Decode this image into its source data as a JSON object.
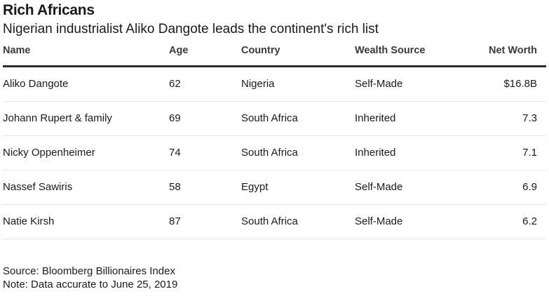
{
  "chart_data": {
    "type": "table",
    "title": "Rich Africans",
    "subtitle": "Nigerian industrialist Aliko Dangote leads the continent's rich list",
    "columns": [
      "Name",
      "Age",
      "Country",
      "Wealth Source",
      "Net Worth"
    ],
    "rows": [
      {
        "name": "Aliko Dangote",
        "age": "62",
        "country": "Nigeria",
        "source": "Self-Made",
        "worth": "$16.8B"
      },
      {
        "name": "Johann Rupert & family",
        "age": "69",
        "country": "South Africa",
        "source": "Inherited",
        "worth": "7.3"
      },
      {
        "name": "Nicky Oppenheimer",
        "age": "74",
        "country": "South Africa",
        "source": "Inherited",
        "worth": "7.1"
      },
      {
        "name": "Nassef Sawiris",
        "age": "58",
        "country": "Egypt",
        "source": "Self-Made",
        "worth": "6.9"
      },
      {
        "name": "Natie Kirsh",
        "age": "87",
        "country": "South Africa",
        "source": "Self-Made",
        "worth": "6.2"
      }
    ],
    "source": "Source: Bloomberg Billionaires Index",
    "note": "Note: Data accurate to June 25, 2019"
  }
}
